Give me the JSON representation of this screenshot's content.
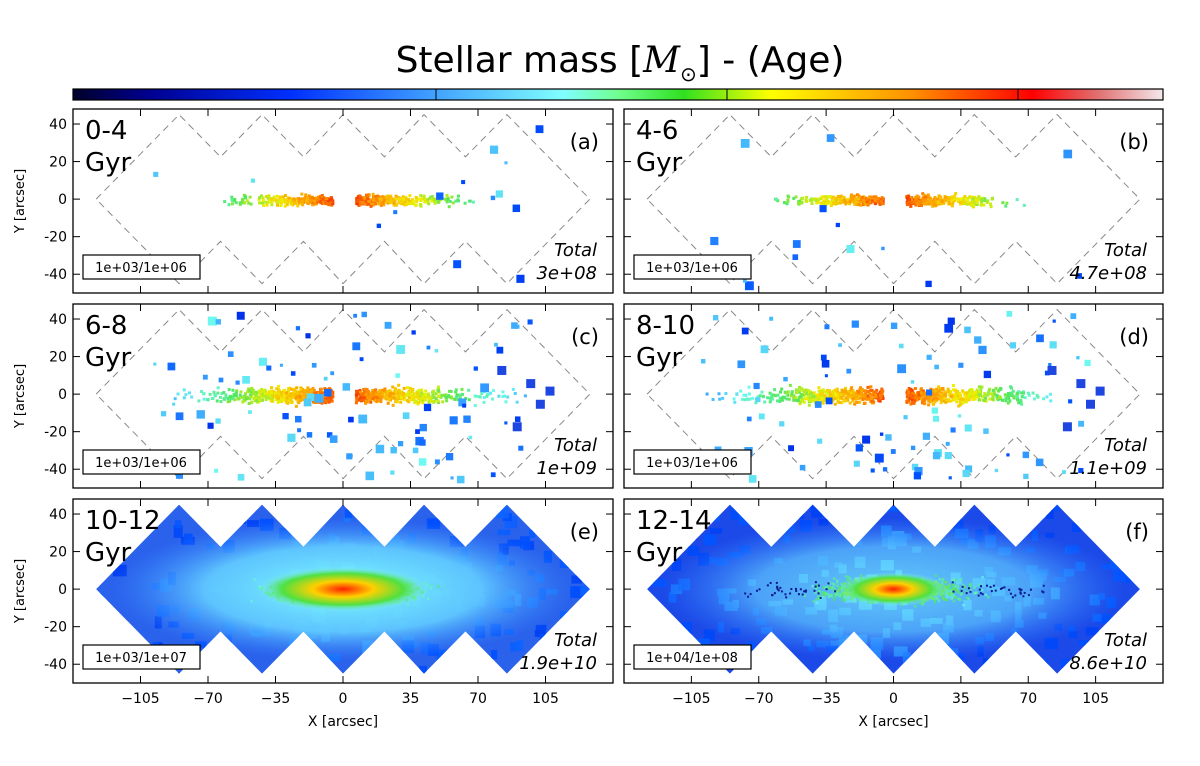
{
  "title": {
    "prefix": "Stellar mass [",
    "symbol": "M",
    "subscript": "⊙",
    "suffix": "] - (Age)"
  },
  "axis_labels": {
    "x": "X [arcsec]",
    "y": "Y [arcsec]"
  },
  "chart_data": {
    "type": "heatmap",
    "layout": "3x2 small multiples",
    "title": "Stellar mass [M⊙] - (Age)",
    "colormap": "jet (log scale, per-panel min/max)",
    "colorbar_orientation": "horizontal, top",
    "xlabel": "X [arcsec]",
    "ylabel": "Y [arcsec]",
    "xlim": [
      -140,
      140
    ],
    "ylim": [
      -50,
      48
    ],
    "xticks": [
      -105,
      -70,
      -35,
      0,
      35,
      70,
      105
    ],
    "yticks": [
      -40,
      -20,
      0,
      20,
      40
    ],
    "grid": false,
    "panels": [
      {
        "tag": "(a)",
        "age_label": "0-4",
        "age_unit": "Gyr",
        "range_label": "1e+03/1e+06",
        "total_label": "Total",
        "total_value": "3e+08",
        "coverage": "thin disk only"
      },
      {
        "tag": "(b)",
        "age_label": "4-6",
        "age_unit": "Gyr",
        "range_label": "1e+03/1e+06",
        "total_label": "Total",
        "total_value": "4.7e+08",
        "coverage": "thin disk + sparse"
      },
      {
        "tag": "(c)",
        "age_label": "6-8",
        "age_unit": "Gyr",
        "range_label": "1e+03/1e+06",
        "total_label": "Total",
        "total_value": "1e+09",
        "coverage": "disk + scattered"
      },
      {
        "tag": "(d)",
        "age_label": "8-10",
        "age_unit": "Gyr",
        "range_label": "1e+03/1e+06",
        "total_label": "Total",
        "total_value": "1.1e+09",
        "coverage": "disk + scattered"
      },
      {
        "tag": "(e)",
        "age_label": "10-12",
        "age_unit": "Gyr",
        "range_label": "1e+03/1e+07",
        "total_label": "Total",
        "total_value": "1.9e+10",
        "coverage": "full mosaic"
      },
      {
        "tag": "(f)",
        "age_label": "12-14",
        "age_unit": "Gyr",
        "range_label": "1e+04/1e+08",
        "total_label": "Total",
        "total_value": "8.6e+10",
        "coverage": "full mosaic"
      }
    ]
  }
}
